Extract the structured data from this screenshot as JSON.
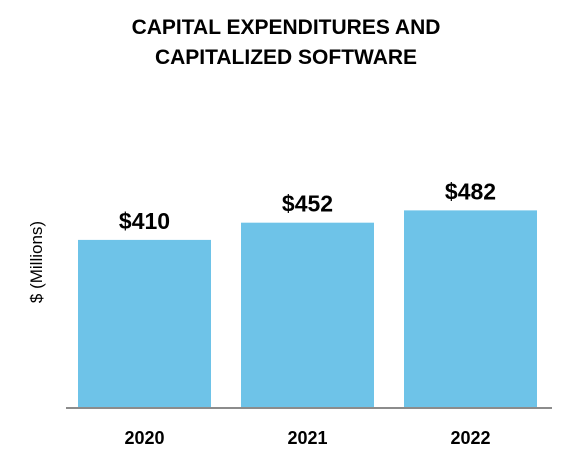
{
  "chart_data": {
    "type": "bar",
    "title_lines": [
      "CAPITAL EXPENDITURES AND",
      "CAPITALIZED SOFTWARE"
    ],
    "xlabel": "",
    "ylabel": "$ (Millions)",
    "categories": [
      "2020",
      "2021",
      "2022"
    ],
    "values": [
      410,
      452,
      482
    ],
    "data_labels": [
      "$410",
      "$452",
      "$482"
    ],
    "ylim": [
      0,
      600
    ],
    "grid": false,
    "legend": "none",
    "colors": {
      "bar": "#6EC3E8",
      "axis": "#8C8C8C",
      "text": "#000000"
    }
  }
}
